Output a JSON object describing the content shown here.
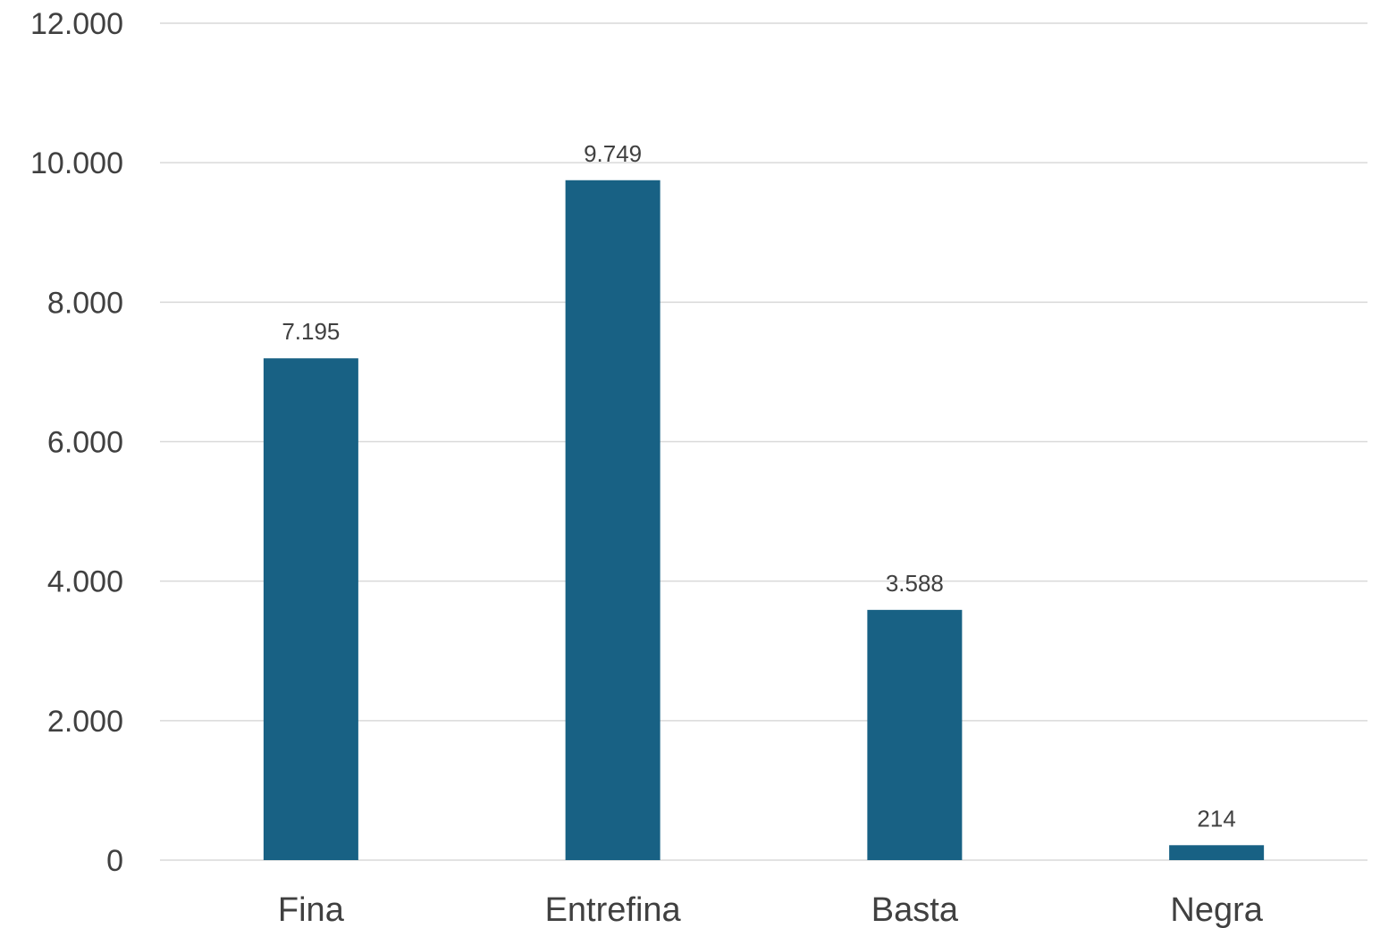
{
  "chart_data": {
    "type": "bar",
    "title": "",
    "xlabel": "",
    "ylabel": "",
    "categories": [
      "Fina",
      "Entrefina",
      "Basta",
      "Negra"
    ],
    "values": [
      7195,
      9749,
      3588,
      214
    ],
    "data_labels": [
      "7.195",
      "9.749",
      "3.588",
      "214"
    ],
    "ylim": [
      0,
      12000
    ],
    "yticks": [
      0,
      2000,
      4000,
      6000,
      8000,
      10000,
      12000
    ],
    "ytick_labels": [
      "0",
      "2.000",
      "4.000",
      "6.000",
      "8.000",
      "10.000",
      "12.000"
    ],
    "grid": true,
    "legend": "none",
    "bar_color": "#186184",
    "grid_color": "#d9d9d9",
    "text_color": "#404040"
  }
}
